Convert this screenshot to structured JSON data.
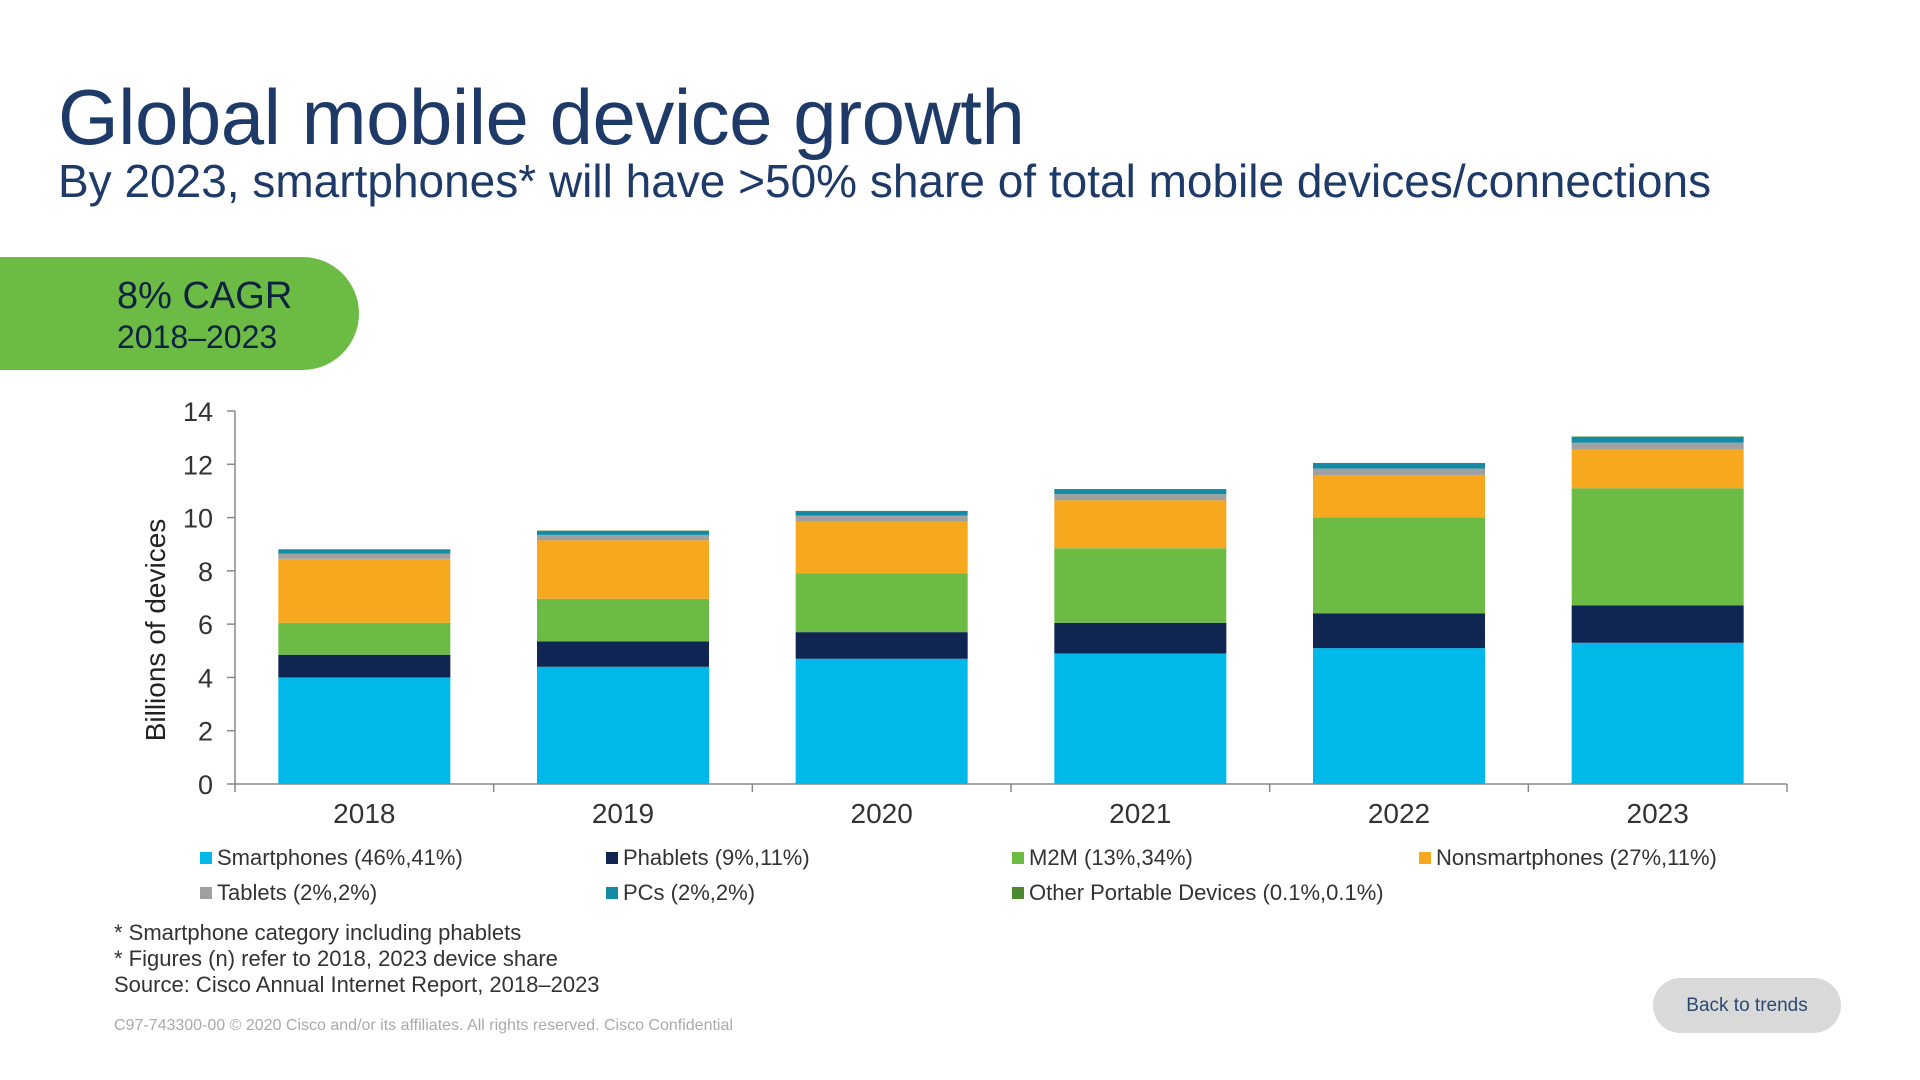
{
  "header": {
    "title": "Global mobile device growth",
    "subtitle": "By 2023, smartphones* will have >50% share of total mobile devices/connections"
  },
  "cagr_badge": {
    "value": "8% CAGR",
    "period": "2018–2023",
    "color": "#6cbb45"
  },
  "chart_data": {
    "type": "bar",
    "stacked": true,
    "categories": [
      "2018",
      "2019",
      "2020",
      "2021",
      "2022",
      "2023"
    ],
    "ylabel": "Billions of devices",
    "xlabel": "",
    "ylim": [
      0,
      14
    ],
    "yticks": [
      "0",
      "2",
      "4",
      "6",
      "8",
      "10",
      "12",
      "14"
    ],
    "grid": false,
    "legend_position": "bottom",
    "series": [
      {
        "name": "Smartphones (46%,41%)",
        "color": "#00b9e8",
        "values": [
          4.0,
          4.4,
          4.7,
          4.9,
          5.1,
          5.3
        ]
      },
      {
        "name": "Phablets (9%,11%)",
        "color": "#0f2652",
        "values": [
          0.85,
          0.95,
          1.0,
          1.15,
          1.3,
          1.4
        ]
      },
      {
        "name": "M2M (13%,34%)",
        "color": "#6cbb45",
        "values": [
          1.2,
          1.6,
          2.2,
          2.8,
          3.6,
          4.4
        ]
      },
      {
        "name": "Nonsmartphones (27%,11%)",
        "color": "#f6a81f",
        "values": [
          2.4,
          2.2,
          1.95,
          1.8,
          1.6,
          1.45
        ]
      },
      {
        "name": "Tablets (2%,2%)",
        "color": "#a0a0a0",
        "values": [
          0.2,
          0.2,
          0.22,
          0.23,
          0.24,
          0.26
        ]
      },
      {
        "name": "PCs (2%,2%)",
        "color": "#138ba5",
        "values": [
          0.15,
          0.15,
          0.17,
          0.18,
          0.2,
          0.22
        ]
      },
      {
        "name": "Other Portable Devices (0.1%,0.1%)",
        "color": "#4a8a31",
        "values": [
          0.01,
          0.01,
          0.01,
          0.01,
          0.01,
          0.01
        ]
      }
    ]
  },
  "notes": [
    "* Smartphone category including phablets",
    "* Figures (n) refer to 2018, 2023 device share",
    "Source: Cisco Annual Internet Report, 2018–2023"
  ],
  "copyright": "C97-743300-00 © 2020  Cisco and/or its affiliates. All rights reserved.    Cisco Confidential",
  "back_button": {
    "label": "Back to trends"
  }
}
